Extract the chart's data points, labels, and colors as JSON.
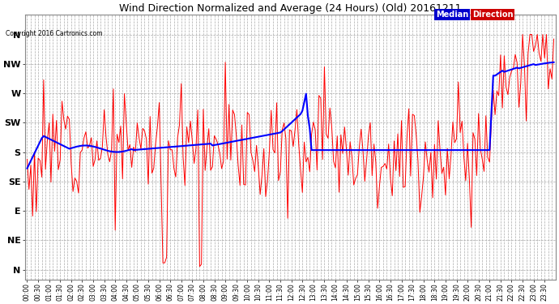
{
  "title": "Wind Direction Normalized and Average (24 Hours) (Old) 20161211",
  "copyright": "Copyright 2016 Cartronics.com",
  "background_color": "#ffffff",
  "grid_color": "#aaaaaa",
  "y_labels": [
    "N",
    "NW",
    "W",
    "SW",
    "S",
    "SE",
    "E",
    "NE",
    "N"
  ],
  "y_ticks": [
    360,
    315,
    270,
    225,
    180,
    135,
    90,
    45,
    0
  ],
  "ylim": [
    -15,
    390
  ],
  "legend_median_bg": "#0000cc",
  "legend_direction_bg": "#cc0000",
  "legend_median_text": "Median",
  "legend_direction_text": "Direction",
  "red_line_color": "#ff0000",
  "blue_line_color": "#0000ff",
  "dark_line_color": "#333333"
}
